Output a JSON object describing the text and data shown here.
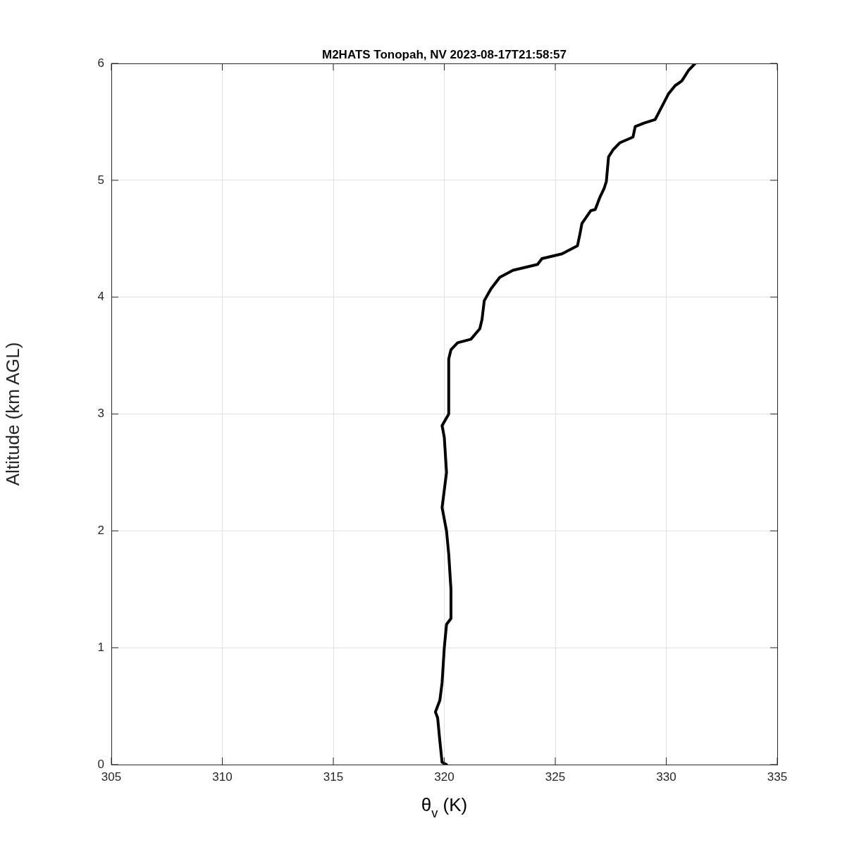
{
  "chart_data": {
    "type": "line",
    "title": "M2HATS Tonopah, NV 2023-08-17T21:58:57",
    "xlabel": "θ$_{v}$ (K)",
    "ylabel": "Altitude (km AGL)",
    "series": [
      {
        "color": "#000000",
        "x": [
          320.1,
          319.9,
          319.8,
          319.7,
          319.6,
          319.8,
          319.9,
          320.0,
          320.1,
          320.3,
          320.3,
          320.2,
          320.1,
          319.9,
          320.1,
          320.0,
          319.9,
          320.2,
          320.2,
          320.3,
          320.6,
          321.2,
          321.6,
          321.7,
          321.8,
          322.1,
          322.5,
          323.1,
          324.2,
          324.4,
          325.3,
          326.0,
          326.1,
          326.2,
          326.6,
          326.8,
          327.0,
          327.2,
          327.3,
          327.4,
          327.6,
          327.9,
          328.5,
          328.6,
          329.0,
          329.5,
          329.8,
          330.1,
          330.4,
          330.7,
          331.0,
          331.3
        ],
        "values": [
          0,
          0.02,
          0.2,
          0.4,
          0.45,
          0.55,
          0.7,
          1.0,
          1.2,
          1.25,
          1.5,
          1.8,
          2.0,
          2.2,
          2.5,
          2.8,
          2.9,
          3.0,
          3.47,
          3.55,
          3.61,
          3.64,
          3.73,
          3.81,
          3.97,
          4.07,
          4.17,
          4.23,
          4.28,
          4.33,
          4.37,
          4.44,
          4.53,
          4.63,
          4.74,
          4.75,
          4.85,
          4.93,
          4.99,
          5.2,
          5.26,
          5.32,
          5.37,
          5.46,
          5.49,
          5.52,
          5.63,
          5.74,
          5.81,
          5.85,
          5.94,
          6.0
        ]
      }
    ],
    "xlim": [
      305,
      335
    ],
    "xticks": [
      305,
      310,
      315,
      320,
      325,
      330,
      335
    ],
    "ylim": [
      0,
      6
    ],
    "yticks": [
      0,
      1,
      2,
      3,
      4,
      5,
      6
    ],
    "grid": true,
    "legend": false,
    "marker": "none",
    "line_style": "solid"
  }
}
